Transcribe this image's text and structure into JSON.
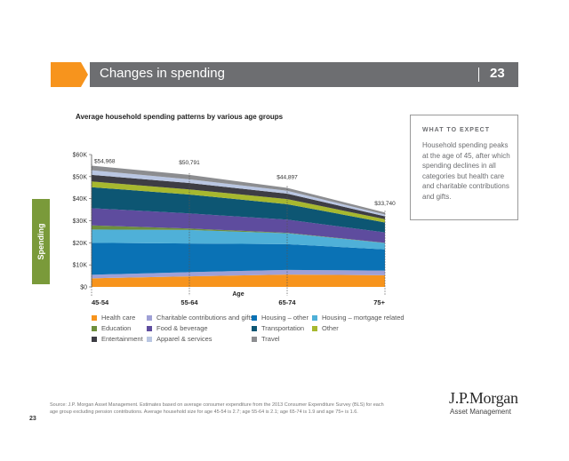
{
  "header": {
    "title": "Changes in spending",
    "page_number": "23",
    "accent_color": "#f7941d",
    "bar_color": "#6d6e71"
  },
  "side_tab": {
    "label": "Spending",
    "color": "#7a9a3a"
  },
  "callout": {
    "heading": "WHAT TO EXPECT",
    "body": "Household spending peaks at the age of 45, after which spending declines in all categories but health care and charitable contributions and gifts."
  },
  "source": "Source: J.P. Morgan Asset Management. Estimates based on average consumer expenditure from the 2013 Consumer Expenditure Survey (BLS) for each age group excluding pension contributions. Average household size for age 45-54 is 2.7; age 55-64 is 2.1; age 65-74 is 1.9 and age 75+ is 1.6.",
  "footer_page": "23",
  "logo": {
    "name": "J.P.Morgan",
    "sub": "Asset Management"
  },
  "chart_data": {
    "type": "area",
    "stacked": true,
    "title": "Average household spending patterns by various age groups",
    "xlabel": "Age",
    "ylabel": "",
    "categories": [
      "45-54",
      "55-64",
      "65-74",
      "75+"
    ],
    "y_ticks": [
      "$0",
      "$10K",
      "$20K",
      "$30K",
      "$40K",
      "$50K",
      "$60K"
    ],
    "ylim": [
      0,
      60000
    ],
    "totals": [
      54968,
      50791,
      44897,
      33740
    ],
    "total_labels": [
      "$54,968",
      "$50,791",
      "$44,897",
      "$33,740"
    ],
    "series": [
      {
        "name": "Health care",
        "color": "#f7941d",
        "values": [
          3900,
          4800,
          5600,
          5300
        ]
      },
      {
        "name": "Charitable contributions and gifts",
        "color": "#9fa0d6",
        "values": [
          1600,
          1900,
          2100,
          2100
        ]
      },
      {
        "name": "Housing – other",
        "color": "#0a72b5",
        "values": [
          14500,
          13000,
          11700,
          9600
        ]
      },
      {
        "name": "Housing – mortgage related",
        "color": "#4fb0d8",
        "values": [
          6000,
          6100,
          4900,
          2900
        ]
      },
      {
        "name": "Education",
        "color": "#6e8f3d",
        "values": [
          1900,
          700,
          200,
          100
        ]
      },
      {
        "name": "Food & beverage",
        "color": "#5e4c9e",
        "values": [
          7800,
          6800,
          6000,
          4700
        ]
      },
      {
        "name": "Transportation",
        "color": "#0d5673",
        "values": [
          9500,
          8600,
          7000,
          4500
        ]
      },
      {
        "name": "Other",
        "color": "#a7b82f",
        "values": [
          2600,
          2300,
          2300,
          1500
        ]
      },
      {
        "name": "Entertainment",
        "color": "#3d3d44",
        "values": [
          3000,
          2900,
          2500,
          1300
        ]
      },
      {
        "name": "Apparel & services",
        "color": "#b9c6e2",
        "values": [
          2100,
          1700,
          1300,
          800
        ]
      },
      {
        "name": "Travel",
        "color": "#8c8d90",
        "values": [
          2068,
          1991,
          1297,
          940
        ]
      }
    ],
    "legend_placement": "bottom"
  }
}
